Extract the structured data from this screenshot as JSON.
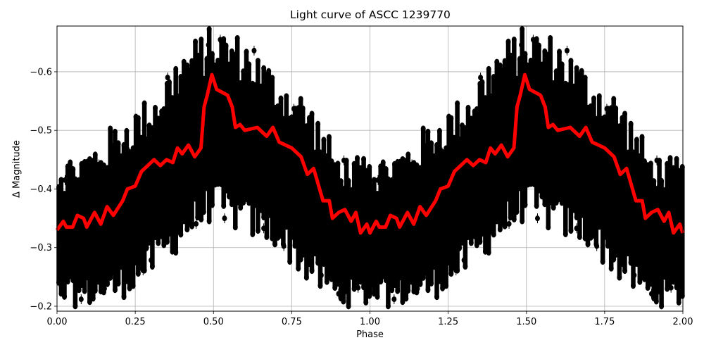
{
  "chart_data": {
    "type": "scatter",
    "title": "Light curve of ASCC 1239770",
    "xlabel": "Phase",
    "ylabel": "Δ Magnitude",
    "xlim": [
      0.0,
      2.0
    ],
    "ylim": [
      -0.1916,
      -0.678
    ],
    "y_inverted": true,
    "grid": true,
    "xticks": [
      0.0,
      0.25,
      0.5,
      0.75,
      1.0,
      1.25,
      1.5,
      1.75,
      2.0
    ],
    "xtick_labels": [
      "0.00",
      "0.25",
      "0.50",
      "0.75",
      "1.00",
      "1.25",
      "1.50",
      "1.75",
      "2.00"
    ],
    "yticks": [
      -0.6,
      -0.5,
      -0.4,
      -0.3,
      -0.2
    ],
    "ytick_labels": [
      "−0.6",
      "−0.5",
      "−0.4",
      "−0.3",
      "−0.2"
    ],
    "series": [
      {
        "name": "observations",
        "kind": "errorbar-scatter",
        "color": "#000000",
        "description": "Dense black points with vertical error bars, folded over two phase cycles; scatter band spans roughly -0.2 to -0.68 mag, brightest near phase 0.5 and 1.5",
        "envelope": {
          "phase": [
            0.0,
            0.1,
            0.2,
            0.3,
            0.4,
            0.5,
            0.6,
            0.7,
            0.8,
            0.9,
            1.0
          ],
          "upper": [
            -0.45,
            -0.47,
            -0.52,
            -0.56,
            -0.64,
            -0.68,
            -0.66,
            -0.6,
            -0.56,
            -0.46,
            -0.45
          ],
          "lower": [
            -0.2,
            -0.2,
            -0.21,
            -0.25,
            -0.3,
            -0.35,
            -0.32,
            -0.3,
            -0.24,
            -0.2,
            -0.2
          ]
        }
      },
      {
        "name": "binned mean",
        "kind": "line",
        "color": "#ff0000",
        "linewidth": 5,
        "x": [
          0.0,
          0.02,
          0.03,
          0.05,
          0.065,
          0.085,
          0.095,
          0.12,
          0.14,
          0.16,
          0.18,
          0.21,
          0.225,
          0.25,
          0.27,
          0.29,
          0.31,
          0.33,
          0.35,
          0.37,
          0.385,
          0.4,
          0.42,
          0.44,
          0.46,
          0.47,
          0.48,
          0.495,
          0.51,
          0.545,
          0.56,
          0.57,
          0.585,
          0.6,
          0.64,
          0.67,
          0.69,
          0.71,
          0.75,
          0.78,
          0.8,
          0.82,
          0.85,
          0.87,
          0.88,
          0.9,
          0.92,
          0.94,
          0.955,
          0.97,
          0.99,
          1.0,
          1.02,
          1.03,
          1.05,
          1.065,
          1.085,
          1.095,
          1.12,
          1.14,
          1.16,
          1.18,
          1.21,
          1.225,
          1.25,
          1.27,
          1.29,
          1.31,
          1.33,
          1.35,
          1.37,
          1.385,
          1.4,
          1.42,
          1.44,
          1.46,
          1.47,
          1.48,
          1.495,
          1.51,
          1.545,
          1.56,
          1.57,
          1.585,
          1.6,
          1.64,
          1.67,
          1.69,
          1.71,
          1.75,
          1.78,
          1.8,
          1.82,
          1.85,
          1.87,
          1.88,
          1.9,
          1.92,
          1.94,
          1.955,
          1.97,
          1.99,
          2.0
        ],
        "y": [
          -0.33,
          -0.345,
          -0.335,
          -0.335,
          -0.355,
          -0.35,
          -0.335,
          -0.36,
          -0.34,
          -0.37,
          -0.355,
          -0.38,
          -0.4,
          -0.405,
          -0.43,
          -0.44,
          -0.45,
          -0.44,
          -0.45,
          -0.445,
          -0.47,
          -0.46,
          -0.475,
          -0.455,
          -0.47,
          -0.54,
          -0.56,
          -0.595,
          -0.57,
          -0.56,
          -0.54,
          -0.505,
          -0.51,
          -0.5,
          -0.505,
          -0.49,
          -0.505,
          -0.48,
          -0.47,
          -0.455,
          -0.425,
          -0.435,
          -0.38,
          -0.38,
          -0.35,
          -0.36,
          -0.365,
          -0.345,
          -0.36,
          -0.325,
          -0.34,
          -0.325,
          -0.345,
          -0.335,
          -0.335,
          -0.355,
          -0.35,
          -0.335,
          -0.36,
          -0.34,
          -0.37,
          -0.355,
          -0.38,
          -0.4,
          -0.405,
          -0.43,
          -0.44,
          -0.45,
          -0.44,
          -0.45,
          -0.445,
          -0.47,
          -0.46,
          -0.475,
          -0.455,
          -0.47,
          -0.54,
          -0.56,
          -0.595,
          -0.57,
          -0.56,
          -0.54,
          -0.505,
          -0.51,
          -0.5,
          -0.505,
          -0.49,
          -0.505,
          -0.48,
          -0.47,
          -0.455,
          -0.425,
          -0.435,
          -0.38,
          -0.38,
          -0.35,
          -0.36,
          -0.365,
          -0.345,
          -0.36,
          -0.325,
          -0.34,
          -0.325
        ]
      }
    ]
  }
}
